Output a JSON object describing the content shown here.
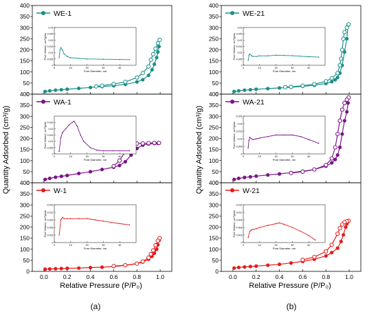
{
  "figure": {
    "ylabel": "Quantity Adsorbed (cm³/g)",
    "xlabel": "Relative Pressure (P/P₀)",
    "panel_a_label": "(a)",
    "panel_b_label": "(b)",
    "inset_xlabel": "Pore Diameter, nm",
    "inset_ylabel": "Pore Volume, cm³/g/nm",
    "colors": {
      "WE": "#1a8f86",
      "WA": "#7b1388",
      "W": "#e31b1b"
    }
  },
  "chart_data": [
    {
      "type": "line",
      "panel": "a",
      "ylim": [
        0,
        400
      ],
      "xlim": [
        -0.1,
        1.1
      ],
      "yticks": [
        0,
        50,
        100,
        150,
        200,
        250,
        300,
        350,
        400
      ],
      "xticks": [
        0.0,
        0.2,
        0.4,
        0.6,
        0.8,
        1.0
      ],
      "subplots": [
        {
          "name": "WE-1",
          "color": "#1a8f86",
          "adsorption": {
            "x": [
              0.01,
              0.05,
              0.1,
              0.15,
              0.2,
              0.3,
              0.4,
              0.5,
              0.6,
              0.7,
              0.8,
              0.85,
              0.9,
              0.93,
              0.95,
              0.97,
              0.98,
              0.99
            ],
            "y": [
              12,
              15,
              18,
              20,
              22,
              26,
              30,
              34,
              38,
              44,
              55,
              65,
              85,
              110,
              135,
              165,
              190,
              215
            ]
          },
          "desorption": {
            "x": [
              0.995,
              0.98,
              0.96,
              0.94,
              0.92,
              0.9,
              0.85,
              0.8,
              0.7,
              0.6,
              0.5,
              0.45
            ],
            "y": [
              245,
              230,
              205,
              180,
              155,
              125,
              95,
              75,
              55,
              46,
              38,
              35
            ]
          },
          "inset": {
            "xlim": [
              0,
              50
            ],
            "ylim": [
              0,
              0.03
            ],
            "yticks": [
              0,
              0.005,
              0.01,
              0.015,
              0.02,
              0.025,
              0.03
            ],
            "xticks": [
              0,
              10,
              20,
              30,
              40
            ],
            "x": [
              3,
              3.5,
              4,
              5,
              6,
              8,
              10,
              15,
              20,
              30,
              40,
              46
            ],
            "y": [
              0.006,
              0.012,
              0.014,
              0.012,
              0.009,
              0.007,
              0.006,
              0.0055,
              0.005,
              0.0048,
              0.0046,
              0.0045
            ]
          }
        },
        {
          "name": "WA-1",
          "color": "#7b1388",
          "adsorption": {
            "x": [
              0.01,
              0.05,
              0.1,
              0.15,
              0.2,
              0.3,
              0.4,
              0.5,
              0.6,
              0.65,
              0.7,
              0.75,
              0.8,
              0.85,
              0.9,
              0.95,
              0.98,
              0.99
            ],
            "y": [
              15,
              20,
              25,
              29,
              33,
              42,
              50,
              60,
              70,
              78,
              95,
              125,
              155,
              170,
              175,
              177,
              178,
              178
            ]
          },
          "desorption": {
            "x": [
              0.99,
              0.95,
              0.9,
              0.85,
              0.8,
              0.75,
              0.7,
              0.65,
              0.6
            ],
            "y": [
              180,
              180,
              179,
              178,
              177,
              170,
              140,
              100,
              75
            ]
          },
          "inset": {
            "xlim": [
              0,
              50
            ],
            "ylim": [
              0,
              0.03
            ],
            "yticks": [
              0,
              0.005,
              0.01,
              0.015,
              0.02,
              0.025
            ],
            "xticks": [
              0,
              10,
              20,
              30,
              40
            ],
            "x": [
              3,
              4,
              5,
              7,
              9,
              11,
              12,
              14,
              16,
              18,
              22,
              26,
              30,
              36,
              40,
              46
            ],
            "y": [
              0.002,
              0.013,
              0.017,
              0.02,
              0.023,
              0.025,
              0.026,
              0.022,
              0.015,
              0.01,
              0.005,
              0.003,
              0.0025,
              0.0025,
              0.0025,
              0.0025
            ]
          }
        },
        {
          "name": "W-1",
          "color": "#e31b1b",
          "adsorption": {
            "x": [
              0.01,
              0.05,
              0.1,
              0.15,
              0.2,
              0.3,
              0.4,
              0.5,
              0.6,
              0.7,
              0.8,
              0.85,
              0.9,
              0.93,
              0.95,
              0.97,
              0.98,
              0.99
            ],
            "y": [
              10,
              11,
              12,
              13,
              14,
              15,
              17,
              19,
              22,
              27,
              35,
              42,
              55,
              68,
              82,
              100,
              120,
              140
            ]
          },
          "desorption": {
            "x": [
              0.995,
              0.98,
              0.96,
              0.94,
              0.92,
              0.9,
              0.85,
              0.8,
              0.7,
              0.6
            ],
            "y": [
              150,
              138,
              118,
              95,
              78,
              62,
              45,
              35,
              28,
              24
            ]
          },
          "inset": {
            "xlim": [
              0,
              50
            ],
            "ylim": [
              0,
              0.015
            ],
            "yticks": [
              0,
              0.003,
              0.006,
              0.009,
              0.012,
              0.015
            ],
            "xticks": [
              0,
              10,
              20,
              30,
              40
            ],
            "x": [
              3,
              4,
              5,
              6,
              8,
              10,
              15,
              20,
              25,
              30,
              35,
              40,
              46
            ],
            "y": [
              0.003,
              0.009,
              0.01,
              0.0095,
              0.0095,
              0.0095,
              0.0095,
              0.0095,
              0.009,
              0.0085,
              0.008,
              0.0075,
              0.007
            ]
          }
        }
      ]
    },
    {
      "type": "line",
      "panel": "b",
      "ylim": [
        0,
        400
      ],
      "xlim": [
        -0.1,
        1.1
      ],
      "yticks": [
        0,
        50,
        100,
        150,
        200,
        250,
        300,
        350,
        400
      ],
      "xticks": [
        0.0,
        0.2,
        0.4,
        0.6,
        0.8,
        1.0
      ],
      "subplots": [
        {
          "name": "WE-21",
          "color": "#1a8f86",
          "adsorption": {
            "x": [
              0.01,
              0.05,
              0.1,
              0.15,
              0.2,
              0.3,
              0.4,
              0.5,
              0.6,
              0.7,
              0.8,
              0.85,
              0.88,
              0.9,
              0.92,
              0.94,
              0.96,
              0.98,
              0.99
            ],
            "y": [
              12,
              15,
              18,
              20,
              22,
              25,
              28,
              31,
              35,
              40,
              48,
              56,
              65,
              75,
              95,
              130,
              190,
              250,
              310
            ]
          },
          "desorption": {
            "x": [
              0.995,
              0.98,
              0.96,
              0.95,
              0.94,
              0.93,
              0.92,
              0.9,
              0.85,
              0.8,
              0.7,
              0.6,
              0.5,
              0.45
            ],
            "y": [
              315,
              300,
              280,
              250,
              200,
              160,
              130,
              95,
              72,
              58,
              45,
              38,
              33,
              31
            ]
          },
          "inset": {
            "xlim": [
              0,
              50
            ],
            "ylim": [
              0,
              0.03
            ],
            "yticks": [
              0,
              0.005,
              0.01,
              0.015,
              0.02,
              0.025,
              0.03
            ],
            "xticks": [
              0,
              10,
              20,
              30,
              40
            ],
            "x": [
              3,
              3.5,
              4,
              5,
              6,
              8,
              10,
              15,
              20,
              25,
              30,
              35,
              40,
              46
            ],
            "y": [
              0.004,
              0.008,
              0.009,
              0.0075,
              0.007,
              0.007,
              0.0075,
              0.0075,
              0.008,
              0.0078,
              0.0076,
              0.0072,
              0.0068,
              0.0065
            ]
          }
        },
        {
          "name": "WA-21",
          "color": "#7b1388",
          "adsorption": {
            "x": [
              0.01,
              0.05,
              0.1,
              0.15,
              0.2,
              0.3,
              0.4,
              0.5,
              0.6,
              0.7,
              0.8,
              0.85,
              0.88,
              0.9,
              0.92,
              0.94,
              0.96,
              0.98,
              0.99
            ],
            "y": [
              15,
              20,
              24,
              27,
              30,
              35,
              40,
              46,
              52,
              60,
              75,
              90,
              105,
              125,
              160,
              220,
              280,
              320,
              360
            ]
          },
          "desorption": {
            "x": [
              0.995,
              0.98,
              0.96,
              0.94,
              0.92,
              0.9,
              0.88,
              0.85,
              0.8,
              0.7,
              0.6,
              0.5
            ],
            "y": [
              385,
              375,
              360,
              330,
              280,
              220,
              160,
              110,
              80,
              60,
              50,
              44
            ]
          },
          "inset": {
            "xlim": [
              0,
              50
            ],
            "ylim": [
              0,
              0.025
            ],
            "yticks": [
              0,
              0.005,
              0.01,
              0.015,
              0.02,
              0.025
            ],
            "xticks": [
              0,
              10,
              20,
              30,
              40
            ],
            "x": [
              3,
              3.5,
              4,
              5,
              6,
              8,
              10,
              15,
              20,
              25,
              30,
              35,
              40,
              46
            ],
            "y": [
              0.004,
              0.009,
              0.011,
              0.01,
              0.0095,
              0.01,
              0.0105,
              0.0115,
              0.0125,
              0.0125,
              0.0125,
              0.0115,
              0.0095,
              0.007
            ]
          }
        },
        {
          "name": "W-21",
          "color": "#e31b1b",
          "adsorption": {
            "x": [
              0.01,
              0.05,
              0.1,
              0.15,
              0.2,
              0.3,
              0.4,
              0.5,
              0.6,
              0.7,
              0.8,
              0.85,
              0.9,
              0.93,
              0.95,
              0.97,
              0.98,
              0.99
            ],
            "y": [
              15,
              18,
              20,
              22,
              24,
              28,
              32,
              38,
              45,
              55,
              70,
              85,
              105,
              135,
              165,
              200,
              215,
              225
            ]
          },
          "desorption": {
            "x": [
              0.995,
              0.98,
              0.96,
              0.94,
              0.92,
              0.9,
              0.85,
              0.8,
              0.7,
              0.6
            ],
            "y": [
              228,
              226,
              222,
              212,
              195,
              170,
              120,
              90,
              65,
              52
            ]
          },
          "inset": {
            "xlim": [
              0,
              50
            ],
            "ylim": [
              0,
              0.015
            ],
            "yticks": [
              0,
              0.003,
              0.006,
              0.009,
              0.012,
              0.015
            ],
            "xticks": [
              0,
              10,
              20,
              30,
              40
            ],
            "x": [
              3,
              4,
              5,
              6,
              8,
              10,
              15,
              20,
              22,
              25,
              30,
              35,
              40,
              44
            ],
            "y": [
              0.002,
              0.0045,
              0.005,
              0.0052,
              0.0055,
              0.006,
              0.0068,
              0.0075,
              0.0078,
              0.0072,
              0.006,
              0.0045,
              0.0028,
              0.001
            ]
          }
        }
      ]
    }
  ]
}
